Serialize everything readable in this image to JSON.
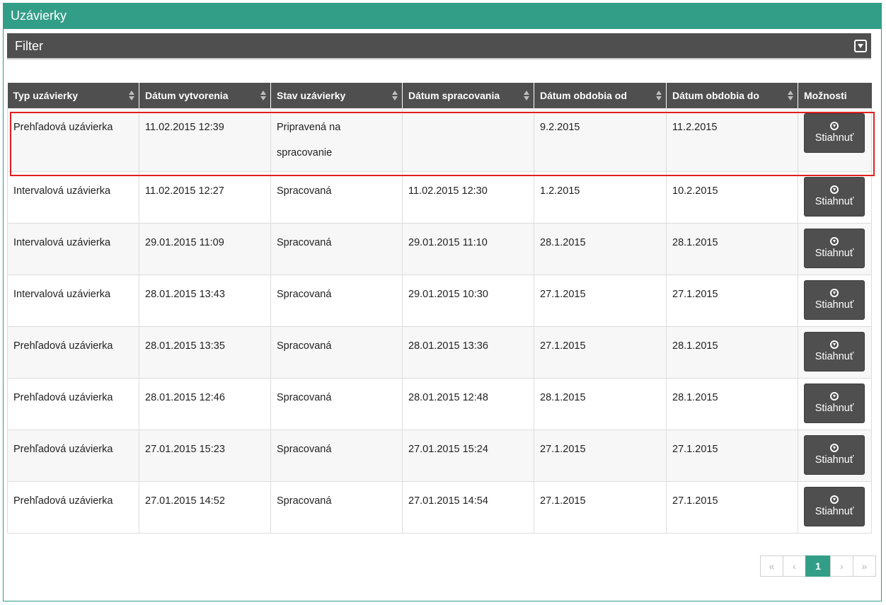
{
  "panel": {
    "title": "Uzávierky"
  },
  "filter": {
    "label": "Filter"
  },
  "table": {
    "headers": [
      "Typ uzávierky",
      "Dátum vytvorenia",
      "Stav uzávierky",
      "Dátum spracovania",
      "Dátum obdobia od",
      "Dátum obdobia do",
      "Možnosti"
    ],
    "rows": [
      {
        "type": "Prehľadová uzávierka",
        "created": "11.02.2015 12:39",
        "status": "Pripravená na spracovanie",
        "processed": "",
        "from": "9.2.2015",
        "to": "11.2.2015",
        "action": "Stiahnuť"
      },
      {
        "type": "Intervalová uzávierka",
        "created": "11.02.2015 12:27",
        "status": "Spracovaná",
        "processed": "11.02.2015 12:30",
        "from": "1.2.2015",
        "to": "10.2.2015",
        "action": "Stiahnuť"
      },
      {
        "type": "Intervalová uzávierka",
        "created": "29.01.2015 11:09",
        "status": "Spracovaná",
        "processed": "29.01.2015 11:10",
        "from": "28.1.2015",
        "to": "28.1.2015",
        "action": "Stiahnuť"
      },
      {
        "type": "Intervalová uzávierka",
        "created": "28.01.2015 13:43",
        "status": "Spracovaná",
        "processed": "29.01.2015 10:30",
        "from": "27.1.2015",
        "to": "27.1.2015",
        "action": "Stiahnuť"
      },
      {
        "type": "Prehľadová uzávierka",
        "created": "28.01.2015 13:35",
        "status": "Spracovaná",
        "processed": "28.01.2015 13:36",
        "from": "27.1.2015",
        "to": "28.1.2015",
        "action": "Stiahnuť"
      },
      {
        "type": "Prehľadová uzávierka",
        "created": "28.01.2015 12:46",
        "status": "Spracovaná",
        "processed": "28.01.2015 12:48",
        "from": "28.1.2015",
        "to": "28.1.2015",
        "action": "Stiahnuť"
      },
      {
        "type": "Prehľadová uzávierka",
        "created": "27.01.2015 15:23",
        "status": "Spracovaná",
        "processed": "27.01.2015 15:24",
        "from": "27.1.2015",
        "to": "27.1.2015",
        "action": "Stiahnuť"
      },
      {
        "type": "Prehľadová uzávierka",
        "created": "27.01.2015 14:52",
        "status": "Spracovaná",
        "processed": "27.01.2015 14:54",
        "from": "27.1.2015",
        "to": "27.1.2015",
        "action": "Stiahnuť"
      }
    ]
  },
  "pagination": {
    "first": "«",
    "prev": "‹",
    "current": "1",
    "next": "›",
    "last": "»"
  },
  "colors": {
    "accent": "#339e88",
    "header_bg": "#4f4f4f",
    "highlight": "#e02020"
  },
  "icons": {
    "filter_toggle": "caret-down-square-icon",
    "sort": "sort-icon",
    "download": "download-circle-icon"
  }
}
